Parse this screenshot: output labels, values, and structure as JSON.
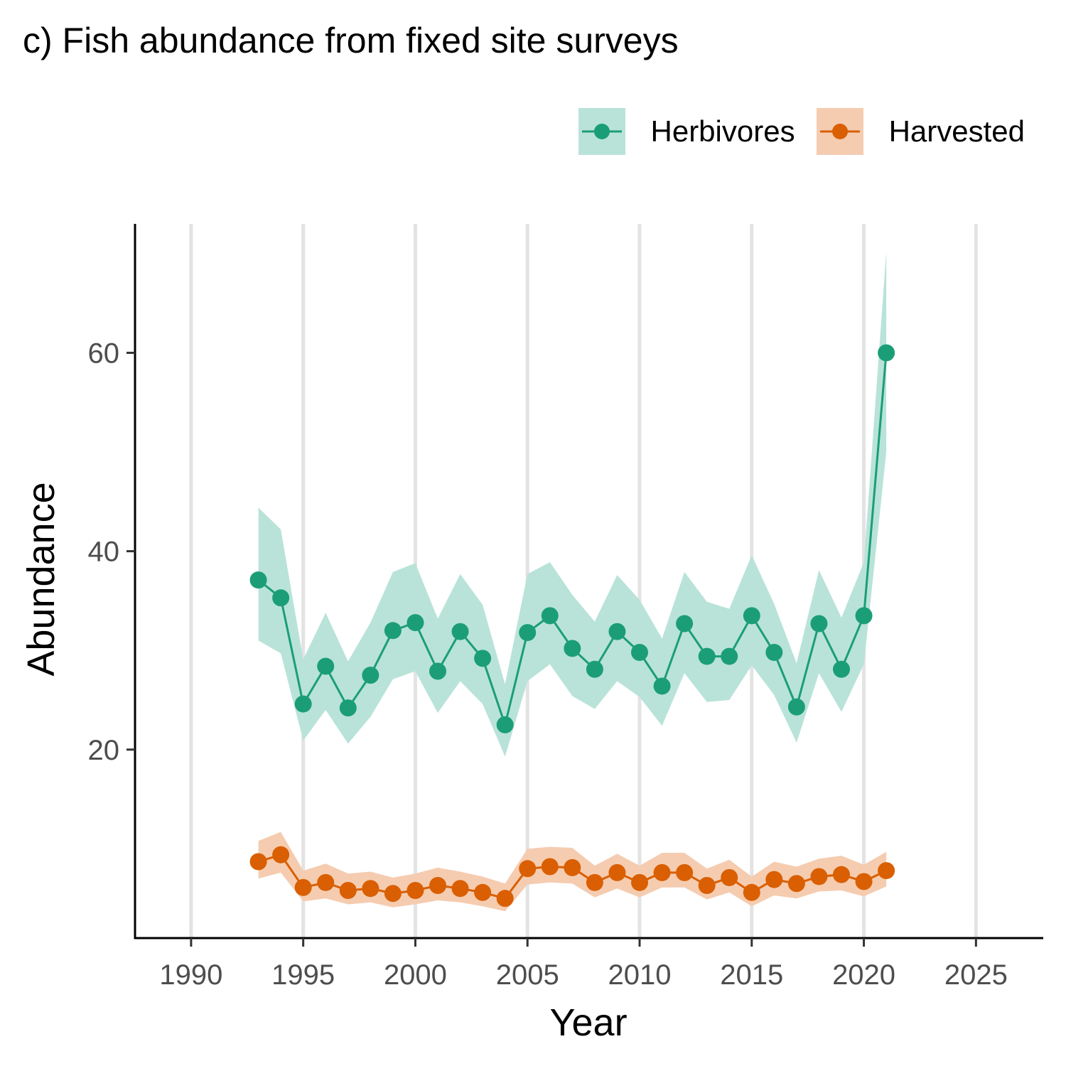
{
  "chart_data": {
    "type": "line",
    "title": "c) Fish abundance from fixed site surveys",
    "xlabel": "Year",
    "ylabel": "Abundance",
    "xlim": [
      1987.5,
      2028
    ],
    "ylim": [
      1,
      73
    ],
    "x_ticks": [
      1990,
      1995,
      2000,
      2005,
      2010,
      2015,
      2020,
      2025
    ],
    "y_ticks": [
      20,
      40,
      60
    ],
    "grid": "vertical major only",
    "legend_position": "top-right",
    "x": [
      1993,
      1994,
      1995,
      1996,
      1997,
      1998,
      1999,
      2000,
      2001,
      2002,
      2003,
      2004,
      2005,
      2006,
      2007,
      2008,
      2009,
      2010,
      2011,
      2012,
      2013,
      2014,
      2015,
      2016,
      2017,
      2018,
      2019,
      2020,
      2021
    ],
    "series": [
      {
        "name": "Herbivores",
        "color": "#1b9e77",
        "ribbon_color": "#b9e3d8",
        "values": [
          37.1,
          35.3,
          24.6,
          28.4,
          24.2,
          27.5,
          32.0,
          32.8,
          27.9,
          31.9,
          29.2,
          22.5,
          31.8,
          33.5,
          30.2,
          28.1,
          31.9,
          29.8,
          26.4,
          32.7,
          29.4,
          29.4,
          33.5,
          29.8,
          24.3,
          32.7,
          28.1,
          33.5,
          60.0
        ],
        "lower": [
          31.0,
          29.7,
          20.9,
          24.0,
          20.6,
          23.3,
          27.1,
          27.9,
          23.7,
          26.9,
          24.6,
          19.3,
          26.9,
          28.6,
          25.4,
          24.1,
          26.9,
          25.3,
          22.4,
          27.7,
          24.8,
          25.0,
          28.5,
          25.5,
          20.7,
          27.7,
          23.8,
          28.6,
          50.0
        ],
        "upper": [
          44.4,
          42.2,
          29.1,
          33.8,
          28.9,
          32.8,
          37.9,
          38.8,
          33.2,
          37.7,
          34.6,
          26.6,
          37.7,
          38.9,
          35.6,
          32.9,
          37.6,
          35.1,
          31.2,
          37.9,
          34.9,
          34.2,
          39.6,
          34.7,
          28.7,
          38.1,
          33.3,
          38.9,
          70.2
        ]
      },
      {
        "name": "Harvested",
        "color": "#d95f02",
        "ribbon_color": "#f5ccb0",
        "values": [
          8.7,
          9.4,
          6.1,
          6.6,
          5.8,
          6.0,
          5.5,
          5.8,
          6.3,
          6.0,
          5.6,
          5.0,
          8.0,
          8.2,
          8.1,
          6.6,
          7.6,
          6.6,
          7.6,
          7.6,
          6.3,
          7.1,
          5.6,
          6.9,
          6.5,
          7.2,
          7.4,
          6.7,
          7.8
        ],
        "lower": [
          7.0,
          7.6,
          4.7,
          5.0,
          4.4,
          4.6,
          4.1,
          4.4,
          4.8,
          4.6,
          4.2,
          3.7,
          6.4,
          6.6,
          6.5,
          5.1,
          6.0,
          5.1,
          6.1,
          6.1,
          4.9,
          5.6,
          4.2,
          5.3,
          5.0,
          5.7,
          5.8,
          5.2,
          6.2
        ],
        "upper": [
          10.8,
          11.7,
          7.8,
          8.5,
          7.5,
          7.7,
          7.1,
          7.5,
          8.1,
          7.7,
          7.2,
          6.5,
          10.0,
          10.2,
          10.1,
          8.3,
          9.5,
          8.3,
          9.6,
          9.6,
          8.0,
          8.9,
          7.2,
          8.7,
          8.2,
          9.0,
          9.3,
          8.4,
          9.7
        ]
      }
    ]
  }
}
